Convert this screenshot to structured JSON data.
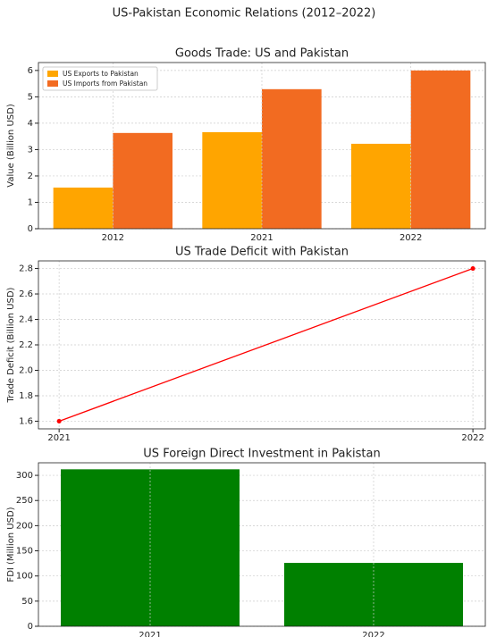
{
  "title": "US-Pakistan Economic Relations (2012–2022)",
  "chart_data": [
    {
      "type": "bar",
      "title": "Goods Trade: US and Pakistan",
      "y_label": "Value (Billion USD)",
      "categories": [
        "2012",
        "2021",
        "2022"
      ],
      "series": [
        {
          "name": "US Exports to Pakistan",
          "color": "#ffa500",
          "values": [
            1.56,
            3.66,
            3.22
          ]
        },
        {
          "name": "US Imports from Pakistan",
          "color": "#f26b21",
          "values": [
            3.63,
            5.29,
            6.0
          ]
        }
      ],
      "ylim": [
        0,
        6.3
      ],
      "yticks": [
        0,
        1,
        2,
        3,
        4,
        5,
        6
      ],
      "grid": true,
      "legend": "upper left"
    },
    {
      "type": "line",
      "title": "US Trade Deficit with Pakistan",
      "y_label": "Trade Deficit (Billion USD)",
      "x": [
        2021,
        2022
      ],
      "series": [
        {
          "color": "#ff0000",
          "values": [
            1.6,
            2.8
          ]
        }
      ],
      "xlim": [
        2020.95,
        2022.03
      ],
      "xticks": [
        2021,
        2022
      ],
      "ylim": [
        1.54,
        2.86
      ],
      "yticks": [
        1.6,
        1.8,
        {
          "value": 2,
          "label": "2.0"
        },
        2.2,
        2.4,
        2.6,
        2.8
      ],
      "grid": true
    },
    {
      "type": "bar",
      "title": "US Foreign Direct Investment in Pakistan",
      "y_label": "FDI (Million USD)",
      "categories": [
        "2021",
        "2022"
      ],
      "series": [
        {
          "color": "#008000",
          "values": [
            312,
            126
          ]
        }
      ],
      "ylim": [
        0,
        325
      ],
      "yticks": [
        0,
        50,
        100,
        150,
        200,
        250,
        300
      ],
      "grid": true
    }
  ]
}
